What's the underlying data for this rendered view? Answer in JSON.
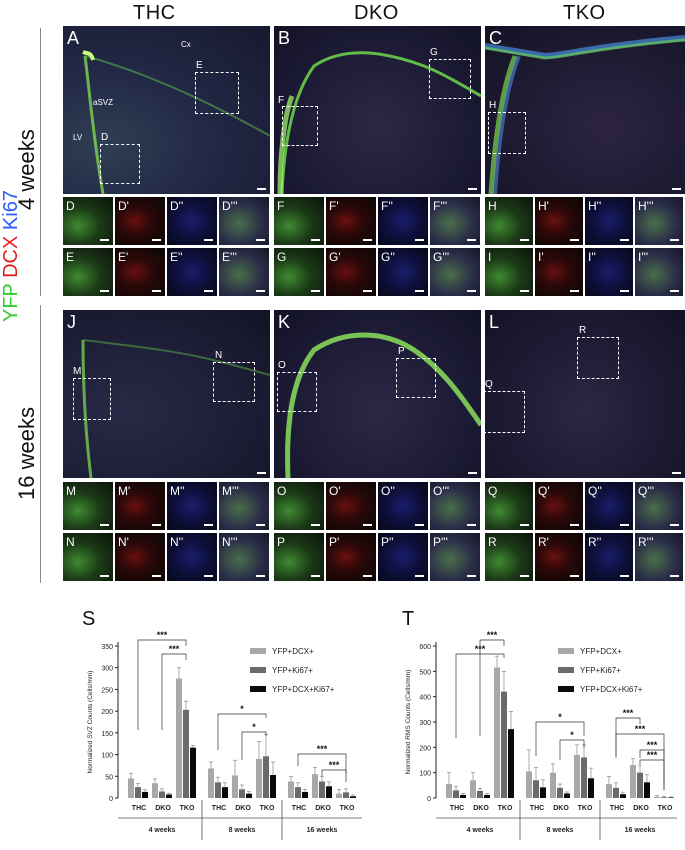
{
  "columns": [
    "THC",
    "DKO",
    "TKO"
  ],
  "rows": [
    "4 weeks",
    "16 weeks"
  ],
  "side_label": {
    "yfp": "YFP",
    "dcx": "DCX",
    "ki67": "Ki67"
  },
  "colors": {
    "yfp": "#2ecc2e",
    "dcx": "#e02020",
    "ki67": "#2a5cff"
  },
  "main_panels": [
    "A",
    "B",
    "C",
    "J",
    "K",
    "L"
  ],
  "region_labels": {
    "cx": "Cx",
    "asvz": "aSVZ",
    "lv": "LV"
  },
  "boxes": [
    "E",
    "D",
    "G",
    "F",
    "H",
    "N",
    "M",
    "P",
    "O",
    "R",
    "Q"
  ],
  "tile_rows": [
    [
      "D",
      "D'",
      "D''",
      "D'''",
      "F",
      "F'",
      "F''",
      "F'''",
      "H",
      "H'",
      "H''",
      "H'''"
    ],
    [
      "E",
      "E'",
      "E''",
      "E'''",
      "G",
      "G'",
      "G''",
      "G'''",
      "I",
      "I'",
      "I''",
      "I'''"
    ],
    [
      "M",
      "M'",
      "M''",
      "M'''",
      "O",
      "O'",
      "O''",
      "O'''",
      "Q",
      "Q'",
      "Q''",
      "Q'''"
    ],
    [
      "N",
      "N'",
      "N''",
      "N'''",
      "P",
      "P'",
      "P''",
      "P'''",
      "R",
      "R'",
      "R''",
      "R'''"
    ]
  ],
  "scale_text": "50 µm",
  "chart_data": [
    {
      "panel": "S",
      "type": "bar",
      "ylabel": "Normalized SVZ Counts (Cells/mm)",
      "ylim": [
        0,
        350
      ],
      "yticks": [
        0,
        50,
        100,
        150,
        200,
        250,
        300,
        350
      ],
      "groups": [
        "4 weeks",
        "8 weeks",
        "16 weeks"
      ],
      "categories": [
        "THC",
        "DKO",
        "TKO"
      ],
      "series": [
        {
          "name": "YFP+DCX+",
          "color": "#a8a8a8",
          "values": [
            [
              45,
              34,
              275
            ],
            [
              68,
              52,
              90
            ],
            [
              38,
              55,
              10
            ]
          ],
          "errors": [
            [
              12,
              10,
              25
            ],
            [
              15,
              35,
              40
            ],
            [
              12,
              15,
              10
            ]
          ]
        },
        {
          "name": "YFP+Ki67+",
          "color": "#6a6a6a",
          "values": [
            [
              25,
              15,
              203
            ],
            [
              36,
              20,
              96
            ],
            [
              25,
              38,
              13
            ]
          ],
          "errors": [
            [
              8,
              6,
              20
            ],
            [
              12,
              10,
              50
            ],
            [
              10,
              12,
              8
            ]
          ]
        },
        {
          "name": "YFP+DCX+Ki67+",
          "color": "#0a0a0a",
          "values": [
            [
              14,
              8,
              116
            ],
            [
              25,
              10,
              53
            ],
            [
              14,
              27,
              4
            ]
          ],
          "errors": [
            [
              5,
              3,
              5
            ],
            [
              10,
              5,
              30
            ],
            [
              6,
              10,
              3
            ]
          ]
        }
      ],
      "significance": [
        "***",
        "***",
        "*",
        "*",
        "***",
        "***"
      ]
    },
    {
      "panel": "T",
      "type": "bar",
      "ylabel": "Normalized RMS Counts (Cells/mm)",
      "ylim": [
        0,
        600
      ],
      "yticks": [
        0,
        100,
        200,
        300,
        400,
        500,
        600
      ],
      "groups": [
        "4 weeks",
        "8 weeks",
        "16 weeks"
      ],
      "categories": [
        "THC",
        "DKO",
        "TKO"
      ],
      "series": [
        {
          "name": "YFP+DCX+",
          "color": "#a8a8a8",
          "values": [
            [
              55,
              70,
              515
            ],
            [
              105,
              100,
              170
            ],
            [
              55,
              130,
              5
            ]
          ],
          "errors": [
            [
              45,
              30,
              45
            ],
            [
              85,
              35,
              40
            ],
            [
              30,
              25,
              5
            ]
          ]
        },
        {
          "name": "YFP+Ki67+",
          "color": "#6a6a6a",
          "values": [
            [
              30,
              28,
              420
            ],
            [
              70,
              40,
              160
            ],
            [
              40,
              100,
              3
            ]
          ],
          "errors": [
            [
              15,
              10,
              80
            ],
            [
              50,
              15,
              50
            ],
            [
              20,
              30,
              3
            ]
          ]
        },
        {
          "name": "YFP+DCX+Ki67+",
          "color": "#0a0a0a",
          "values": [
            [
              12,
              12,
              272
            ],
            [
              42,
              18,
              78
            ],
            [
              15,
              62,
              2
            ]
          ],
          "errors": [
            [
              6,
              5,
              70
            ],
            [
              30,
              6,
              40
            ],
            [
              8,
              30,
              2
            ]
          ]
        }
      ],
      "significance": [
        "***",
        "***",
        "*",
        "*",
        "***",
        "***",
        "***",
        "***"
      ]
    }
  ]
}
